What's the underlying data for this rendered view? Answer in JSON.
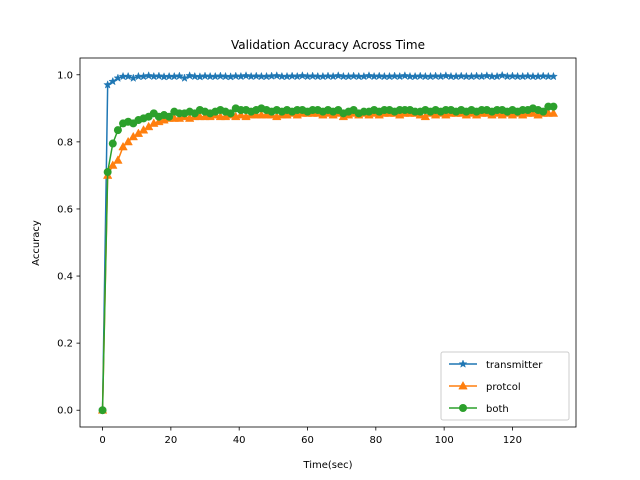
{
  "chart_data": {
    "type": "line",
    "title": "Validation Accuracy Across Time",
    "xlabel": "Time(sec)",
    "ylabel": "Accuracy",
    "xlim": [
      -6.6,
      138.6
    ],
    "ylim": [
      -0.05,
      1.05
    ],
    "xticks": [
      0,
      20,
      40,
      60,
      80,
      100,
      120
    ],
    "yticks": [
      0.0,
      0.2,
      0.4,
      0.6,
      0.8,
      1.0
    ],
    "xtick_labels": [
      "0",
      "20",
      "40",
      "60",
      "80",
      "100",
      "120"
    ],
    "ytick_labels": [
      "0.0",
      "0.2",
      "0.4",
      "0.6",
      "0.8",
      "1.0"
    ],
    "legend_position": "bottom-right",
    "series": [
      {
        "name": "transmitter",
        "color": "#1f77b4",
        "marker": "star",
        "x": [
          0,
          1.5,
          3,
          4.5,
          6,
          7.5,
          9,
          10.5,
          12,
          13.5,
          15,
          16.5,
          18,
          19.5,
          21,
          22.5,
          24,
          25.5,
          27,
          28.5,
          30,
          31.5,
          33,
          34.5,
          36,
          37.5,
          39,
          40.5,
          42,
          43.5,
          45,
          46.5,
          48,
          49.5,
          51,
          52.5,
          54,
          55.5,
          57,
          58.5,
          60,
          61.5,
          63,
          64.5,
          66,
          67.5,
          69,
          70.5,
          72,
          73.5,
          75,
          76.5,
          78,
          79.5,
          81,
          82.5,
          84,
          85.5,
          87,
          88.5,
          90,
          91.5,
          93,
          94.5,
          96,
          97.5,
          99,
          100.5,
          102,
          103.5,
          105,
          106.5,
          108,
          109.5,
          111,
          112.5,
          114,
          115.5,
          117,
          118.5,
          120,
          121.5,
          123,
          124.5,
          126,
          127.5,
          129,
          130.5,
          132
        ],
        "y": [
          0.0,
          0.97,
          0.98,
          0.99,
          0.995,
          0.995,
          0.99,
          0.995,
          0.995,
          0.997,
          0.995,
          0.996,
          0.994,
          0.995,
          0.995,
          0.996,
          0.99,
          0.997,
          0.995,
          0.994,
          0.996,
          0.995,
          0.995,
          0.996,
          0.995,
          0.994,
          0.996,
          0.995,
          0.997,
          0.995,
          0.996,
          0.995,
          0.995,
          0.996,
          0.997,
          0.995,
          0.995,
          0.996,
          0.995,
          0.997,
          0.995,
          0.996,
          0.995,
          0.995,
          0.996,
          0.995,
          0.997,
          0.995,
          0.995,
          0.996,
          0.995,
          0.995,
          0.997,
          0.995,
          0.996,
          0.995,
          0.995,
          0.996,
          0.995,
          0.997,
          0.995,
          0.995,
          0.996,
          0.995,
          0.995,
          0.996,
          0.995,
          0.997,
          0.995,
          0.995,
          0.996,
          0.995,
          0.995,
          0.996,
          0.995,
          0.997,
          0.995,
          0.995,
          0.998,
          0.995,
          0.996,
          0.995,
          0.995,
          0.996,
          0.995,
          0.995,
          0.996,
          0.995,
          0.995
        ]
      },
      {
        "name": "protcol",
        "color": "#ff7f0e",
        "marker": "triangle",
        "x": [
          0,
          1.5,
          3,
          4.5,
          6,
          7.5,
          9,
          10.5,
          12,
          13.5,
          15,
          16.5,
          18,
          19.5,
          21,
          22.5,
          24,
          25.5,
          27,
          28.5,
          30,
          31.5,
          33,
          34.5,
          36,
          37.5,
          39,
          40.5,
          42,
          43.5,
          45,
          46.5,
          48,
          49.5,
          51,
          52.5,
          54,
          55.5,
          57,
          58.5,
          60,
          61.5,
          63,
          64.5,
          66,
          67.5,
          69,
          70.5,
          72,
          73.5,
          75,
          76.5,
          78,
          79.5,
          81,
          82.5,
          84,
          85.5,
          87,
          88.5,
          90,
          91.5,
          93,
          94.5,
          96,
          97.5,
          99,
          100.5,
          102,
          103.5,
          105,
          106.5,
          108,
          109.5,
          111,
          112.5,
          114,
          115.5,
          117,
          118.5,
          120,
          121.5,
          123,
          124.5,
          126,
          127.5,
          129,
          130.5,
          132
        ],
        "y": [
          0.0,
          0.7,
          0.73,
          0.745,
          0.785,
          0.8,
          0.815,
          0.825,
          0.835,
          0.845,
          0.855,
          0.86,
          0.865,
          0.87,
          0.87,
          0.87,
          0.875,
          0.87,
          0.875,
          0.875,
          0.875,
          0.875,
          0.88,
          0.875,
          0.875,
          0.88,
          0.875,
          0.88,
          0.875,
          0.88,
          0.88,
          0.88,
          0.88,
          0.88,
          0.875,
          0.88,
          0.88,
          0.885,
          0.88,
          0.885,
          0.885,
          0.885,
          0.885,
          0.88,
          0.885,
          0.88,
          0.885,
          0.875,
          0.88,
          0.885,
          0.88,
          0.885,
          0.88,
          0.885,
          0.88,
          0.885,
          0.885,
          0.885,
          0.88,
          0.885,
          0.885,
          0.885,
          0.88,
          0.875,
          0.885,
          0.88,
          0.885,
          0.88,
          0.885,
          0.885,
          0.885,
          0.88,
          0.885,
          0.88,
          0.885,
          0.885,
          0.88,
          0.885,
          0.88,
          0.885,
          0.88,
          0.885,
          0.88,
          0.885,
          0.885,
          0.88,
          0.885,
          0.885,
          0.885
        ]
      },
      {
        "name": "both",
        "color": "#2ca02c",
        "marker": "circle",
        "x": [
          0,
          1.5,
          3,
          4.5,
          6,
          7.5,
          9,
          10.5,
          12,
          13.5,
          15,
          16.5,
          18,
          19.5,
          21,
          22.5,
          24,
          25.5,
          27,
          28.5,
          30,
          31.5,
          33,
          34.5,
          36,
          37.5,
          39,
          40.5,
          42,
          43.5,
          45,
          46.5,
          48,
          49.5,
          51,
          52.5,
          54,
          55.5,
          57,
          58.5,
          60,
          61.5,
          63,
          64.5,
          66,
          67.5,
          69,
          70.5,
          72,
          73.5,
          75,
          76.5,
          78,
          79.5,
          81,
          82.5,
          84,
          85.5,
          87,
          88.5,
          90,
          91.5,
          93,
          94.5,
          96,
          97.5,
          99,
          100.5,
          102,
          103.5,
          105,
          106.5,
          108,
          109.5,
          111,
          112.5,
          114,
          115.5,
          117,
          118.5,
          120,
          121.5,
          123,
          124.5,
          126,
          127.5,
          129,
          130.5,
          132
        ],
        "y": [
          0.0,
          0.71,
          0.795,
          0.835,
          0.855,
          0.86,
          0.855,
          0.865,
          0.87,
          0.875,
          0.885,
          0.875,
          0.88,
          0.875,
          0.89,
          0.885,
          0.885,
          0.89,
          0.885,
          0.895,
          0.89,
          0.885,
          0.89,
          0.895,
          0.89,
          0.885,
          0.9,
          0.895,
          0.895,
          0.89,
          0.895,
          0.9,
          0.895,
          0.89,
          0.895,
          0.89,
          0.895,
          0.89,
          0.895,
          0.895,
          0.89,
          0.895,
          0.895,
          0.89,
          0.895,
          0.89,
          0.895,
          0.885,
          0.89,
          0.895,
          0.885,
          0.89,
          0.89,
          0.895,
          0.89,
          0.895,
          0.895,
          0.89,
          0.895,
          0.895,
          0.895,
          0.89,
          0.89,
          0.895,
          0.89,
          0.895,
          0.89,
          0.895,
          0.895,
          0.89,
          0.895,
          0.89,
          0.895,
          0.89,
          0.895,
          0.895,
          0.89,
          0.895,
          0.895,
          0.89,
          0.895,
          0.89,
          0.895,
          0.895,
          0.9,
          0.895,
          0.89,
          0.905,
          0.905
        ]
      }
    ]
  }
}
